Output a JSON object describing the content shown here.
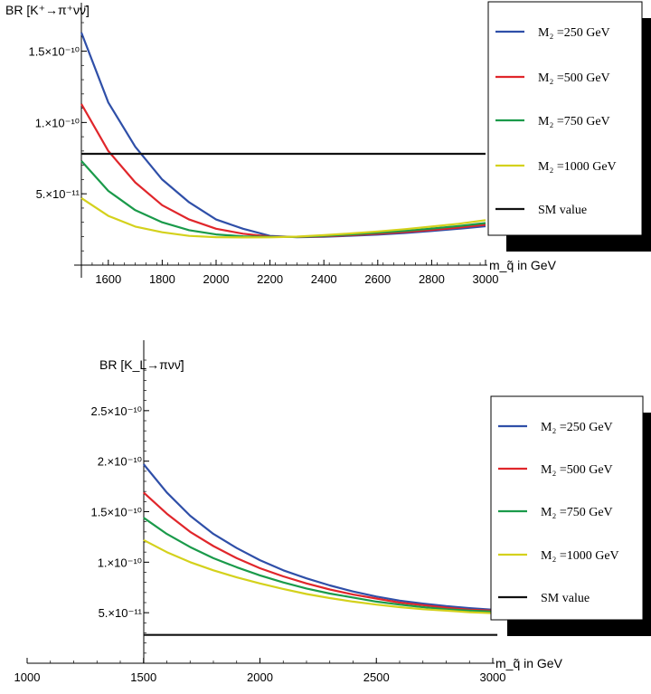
{
  "chart_data": [
    {
      "type": "line",
      "ylabel": "BR [K⁺→π⁺νν̄]",
      "xlabel": "m_q̃ in GeV",
      "xlim": [
        1500,
        3000
      ],
      "ylim": [
        0,
        1.7e-10
      ],
      "x_ticks": [
        1600,
        1800,
        2000,
        2200,
        2400,
        2600,
        2800,
        3000
      ],
      "x_tick_labels": [
        "1600",
        "1800",
        "2000",
        "2200",
        "2400",
        "2600",
        "2800",
        "3000"
      ],
      "y_ticks": [
        5e-11,
        1e-10,
        1.5e-10
      ],
      "y_tick_labels": [
        "5.×10⁻¹¹",
        "1.×10⁻¹⁰",
        "1.5×10⁻¹⁰"
      ],
      "x": [
        1500,
        1600,
        1700,
        1800,
        1900,
        2000,
        2100,
        2200,
        2300,
        2400,
        2500,
        2600,
        2700,
        2800,
        2900,
        3000
      ],
      "series": [
        {
          "name": "M₂ =250 GeV",
          "color": "#2f4fa8",
          "values": [
            1.63e-10,
            1.14e-10,
            8.3e-11,
            6e-11,
            4.4e-11,
            3.2e-11,
            2.55e-11,
            2.05e-11,
            1.96e-11,
            1.99e-11,
            2.06e-11,
            2.14e-11,
            2.25e-11,
            2.39e-11,
            2.55e-11,
            2.73e-11
          ]
        },
        {
          "name": "M₂ =500 GeV",
          "color": "#e0262b",
          "values": [
            1.13e-10,
            8e-11,
            5.8e-11,
            4.2e-11,
            3.2e-11,
            2.55e-11,
            2.2e-11,
            2e-11,
            1.97e-11,
            2.02e-11,
            2.1e-11,
            2.2e-11,
            2.32e-11,
            2.46e-11,
            2.63e-11,
            2.83e-11
          ]
        },
        {
          "name": "M₂ =750 GeV",
          "color": "#1a9a4a",
          "values": [
            7.3e-11,
            5.2e-11,
            3.85e-11,
            3e-11,
            2.45e-11,
            2.15e-11,
            2.02e-11,
            1.97e-11,
            1.98e-11,
            2.05e-11,
            2.15e-11,
            2.27e-11,
            2.4e-11,
            2.56e-11,
            2.74e-11,
            2.95e-11
          ]
        },
        {
          "name": "M₂ =1000 GeV",
          "color": "#d4d11c",
          "values": [
            4.7e-11,
            3.45e-11,
            2.7e-11,
            2.3e-11,
            2.05e-11,
            1.96e-11,
            1.94e-11,
            1.95e-11,
            2e-11,
            2.1e-11,
            2.22e-11,
            2.36e-11,
            2.52e-11,
            2.7e-11,
            2.9e-11,
            3.15e-11
          ]
        },
        {
          "name": "SM value",
          "color": "#111111",
          "values": [
            7.8e-11,
            7.8e-11,
            7.8e-11,
            7.8e-11,
            7.8e-11,
            7.8e-11,
            7.8e-11,
            7.8e-11,
            7.8e-11,
            7.8e-11,
            7.8e-11,
            7.8e-11,
            7.8e-11,
            7.8e-11,
            7.8e-11,
            7.8e-11
          ]
        }
      ]
    },
    {
      "type": "line",
      "ylabel": "BR [K_L→πνν̄]",
      "xlabel": "m_q̃ in GeV",
      "xlim": [
        1000,
        3000
      ],
      "ylim": [
        0,
        3e-10
      ],
      "x_ticks": [
        1000,
        1500,
        2000,
        2500,
        3000
      ],
      "x_tick_labels": [
        "1000",
        "1500",
        "2000",
        "2500",
        "3000"
      ],
      "y_ticks": [
        5e-11,
        1e-10,
        1.5e-10,
        2e-10,
        2.5e-10
      ],
      "y_tick_labels": [
        "5.×10⁻¹¹",
        "1.×10⁻¹⁰",
        "1.5×10⁻¹⁰",
        "2.×10⁻¹⁰",
        "2.5×10⁻¹⁰"
      ],
      "x": [
        1500,
        1600,
        1700,
        1800,
        1900,
        2000,
        2100,
        2200,
        2300,
        2400,
        2500,
        2600,
        2700,
        2800,
        2900,
        3000
      ],
      "series": [
        {
          "name": "M₂ =250 GeV",
          "color": "#2f4fa8",
          "values": [
            1.97e-10,
            1.69e-10,
            1.46e-10,
            1.28e-10,
            1.14e-10,
            1.02e-10,
            9.2e-11,
            8.4e-11,
            7.7e-11,
            7.1e-11,
            6.6e-11,
            6.2e-11,
            5.9e-11,
            5.65e-11,
            5.45e-11,
            5.3e-11
          ]
        },
        {
          "name": "M₂ =500 GeV",
          "color": "#e0262b",
          "values": [
            1.69e-10,
            1.48e-10,
            1.3e-10,
            1.16e-10,
            1.04e-10,
            9.4e-11,
            8.6e-11,
            7.9e-11,
            7.3e-11,
            6.8e-11,
            6.4e-11,
            6e-11,
            5.75e-11,
            5.5e-11,
            5.3e-11,
            5.2e-11
          ]
        },
        {
          "name": "M₂ =750 GeV",
          "color": "#1a9a4a",
          "values": [
            1.44e-10,
            1.28e-10,
            1.15e-10,
            1.04e-10,
            9.5e-11,
            8.7e-11,
            8e-11,
            7.4e-11,
            6.9e-11,
            6.5e-11,
            6.1e-11,
            5.8e-11,
            5.55e-11,
            5.35e-11,
            5.2e-11,
            5.1e-11
          ]
        },
        {
          "name": "M₂ =1000 GeV",
          "color": "#d4d11c",
          "values": [
            1.22e-10,
            1.1e-10,
            1e-10,
            9.2e-11,
            8.5e-11,
            7.9e-11,
            7.35e-11,
            6.85e-11,
            6.45e-11,
            6.1e-11,
            5.8e-11,
            5.55e-11,
            5.35e-11,
            5.2e-11,
            5.05e-11,
            4.95e-11
          ]
        },
        {
          "name": "SM value",
          "color": "#111111",
          "values": [
            2.8e-11,
            2.8e-11,
            2.8e-11,
            2.8e-11,
            2.8e-11,
            2.8e-11,
            2.8e-11,
            2.8e-11,
            2.8e-11,
            2.8e-11,
            2.8e-11,
            2.8e-11,
            2.8e-11,
            2.8e-11,
            2.8e-11,
            2.8e-11
          ]
        }
      ],
      "sm_extends_to": 3020
    }
  ]
}
